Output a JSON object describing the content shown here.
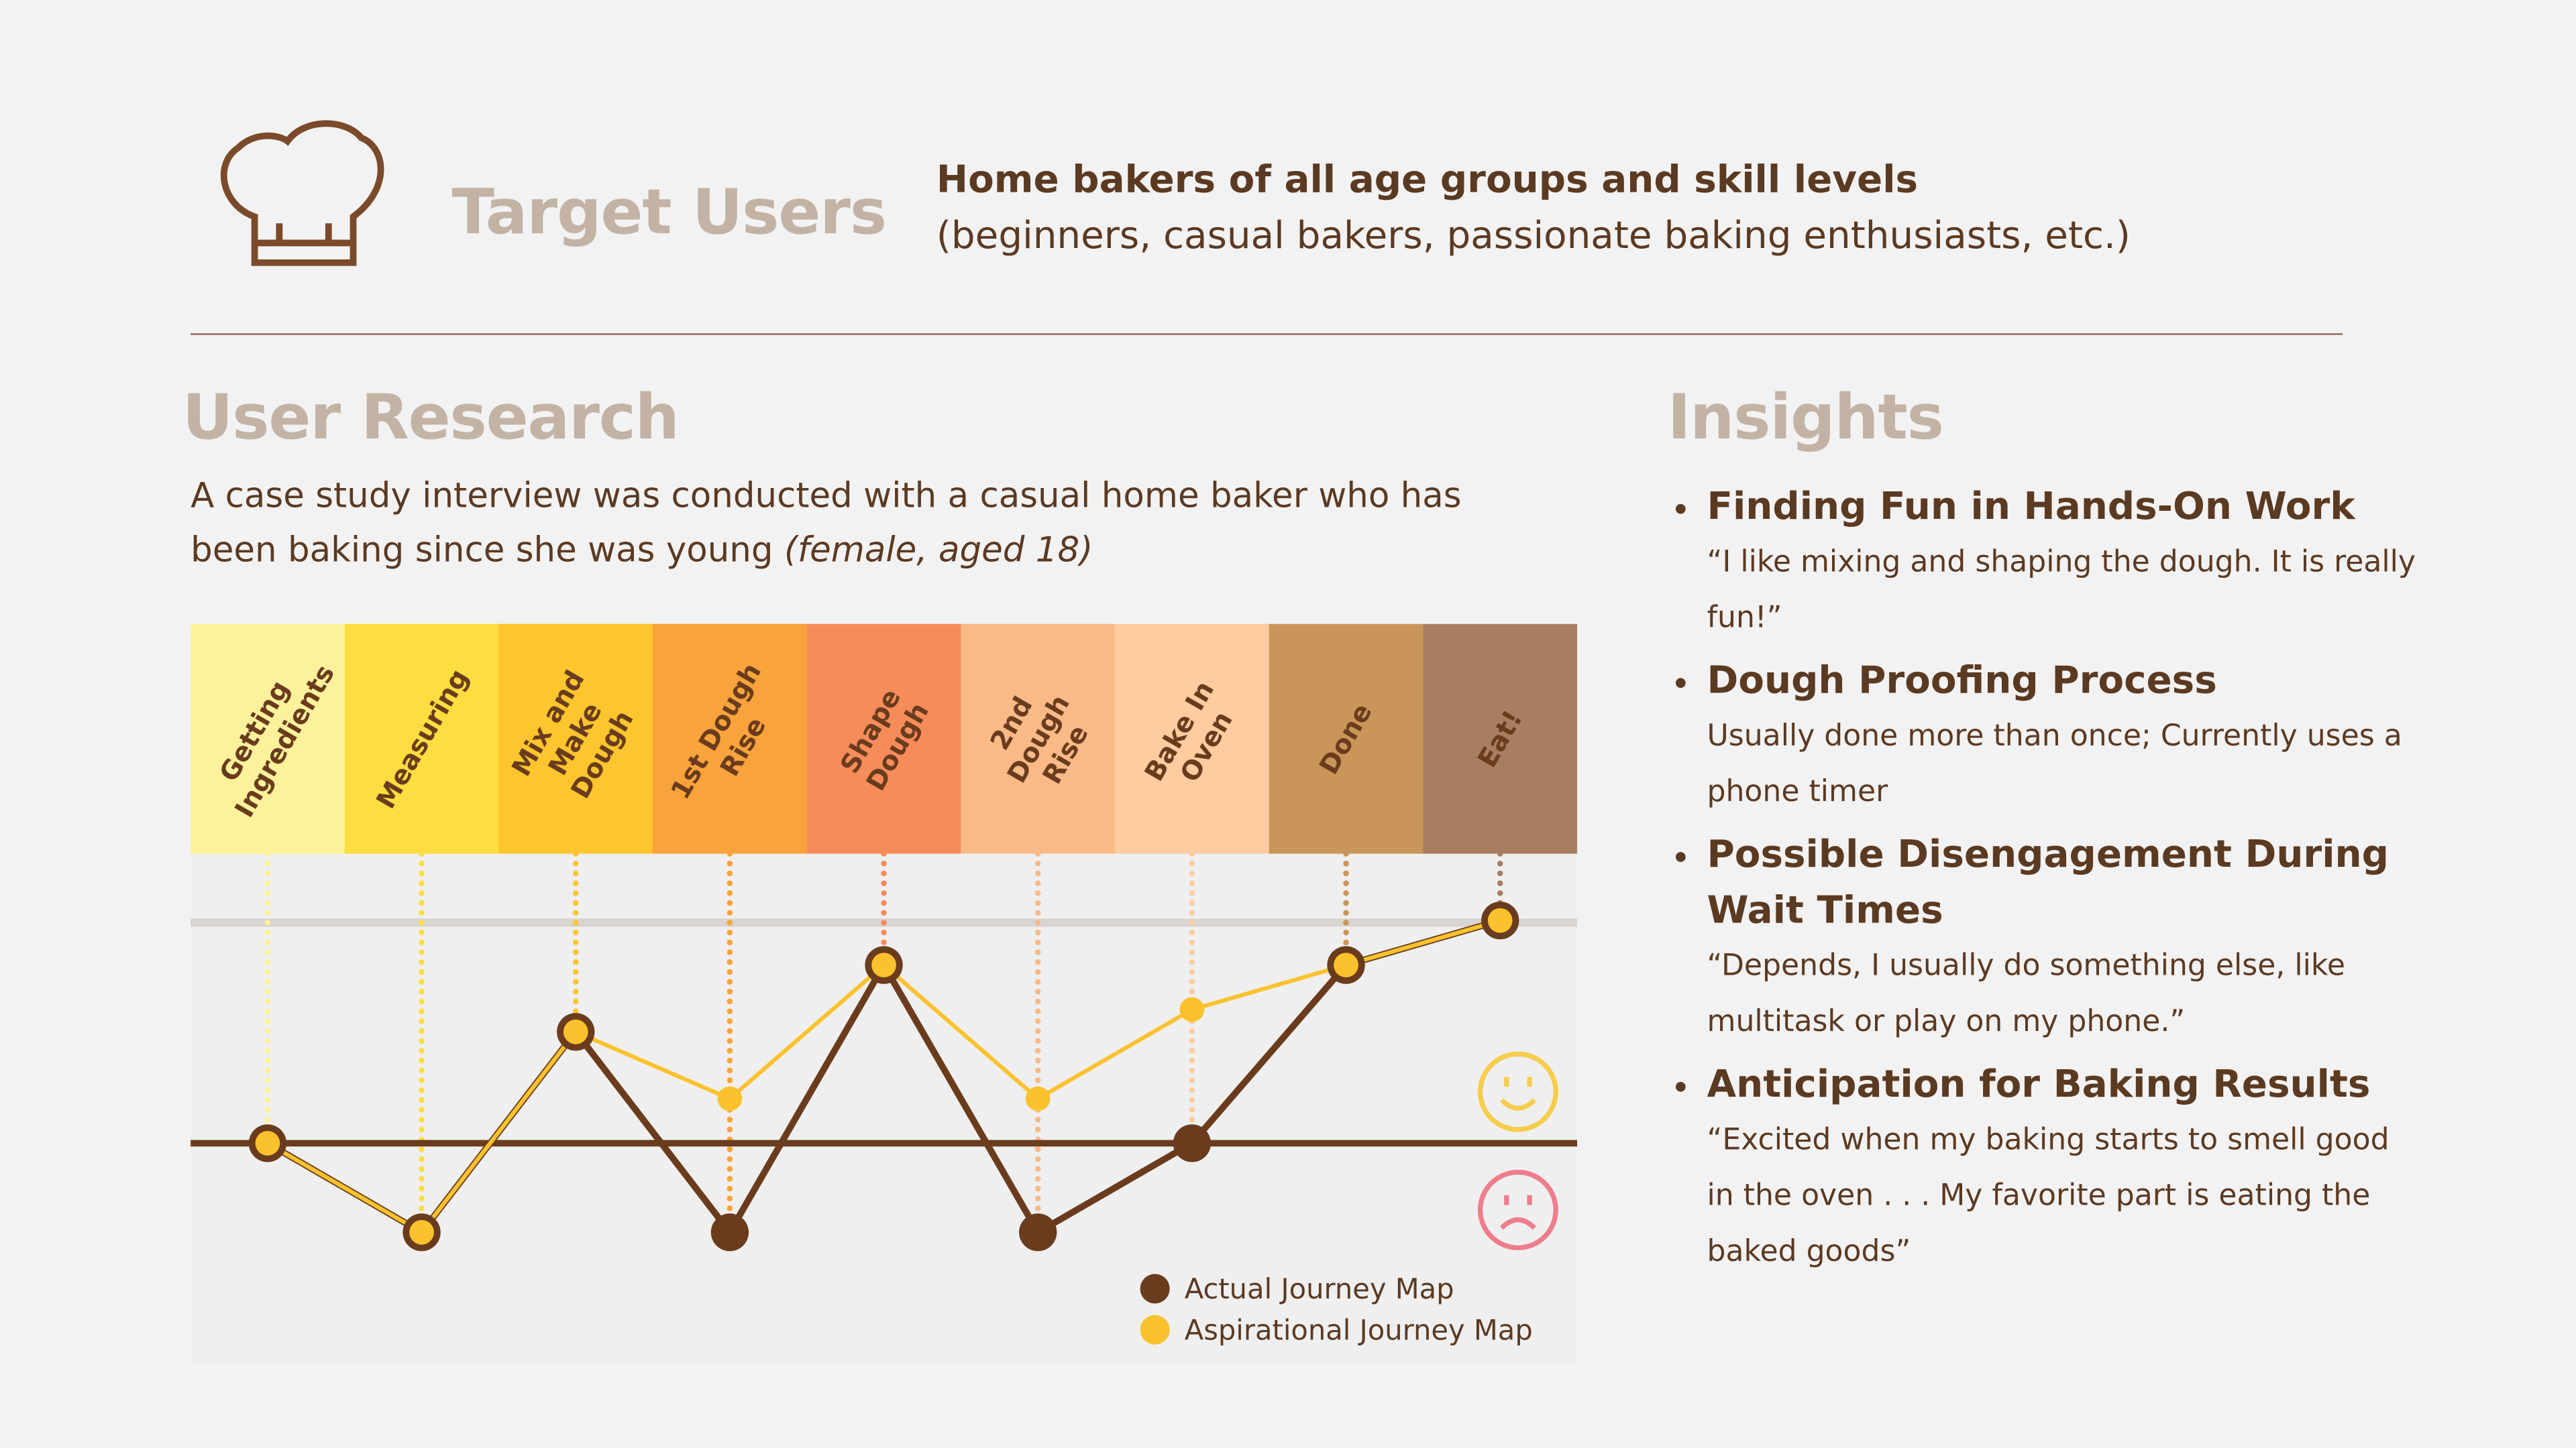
{
  "header": {
    "title": "Target Users",
    "headline": "Home bakers of all age groups and skill levels",
    "detail": "(beginners, casual bakers, passionate baking enthusiasts, etc.)"
  },
  "research": {
    "title": "User Research",
    "description": "A case study interview was conducted with a casual home baker who has been baking since she was young",
    "note": "(female, aged 18)"
  },
  "chart_data": {
    "type": "line",
    "categories": [
      "Getting Ingredients",
      "Measuring",
      "Mix and Make Dough",
      "1st Dough Rise",
      "Shape Dough",
      "2nd Dough Rise",
      "Bake In Oven",
      "Done",
      "Eat!"
    ],
    "category_colors": [
      "#fdf29b",
      "#fedd40",
      "#fec52e",
      "#f9a33c",
      "#f78c5b",
      "#f9ba87",
      "#fdcca0",
      "#c99659",
      "#a87e61"
    ],
    "ylim": [
      -1,
      1.3
    ],
    "series": [
      {
        "name": "Actual Journey Map",
        "color": "#6a3c1d",
        "values": [
          0,
          -0.4,
          0.5,
          -0.4,
          0.8,
          -0.4,
          0,
          0.8,
          1.0
        ]
      },
      {
        "name": "Aspirational Journey Map",
        "color": "#fbc22e",
        "values": [
          0,
          -0.4,
          0.5,
          0.2,
          0.8,
          0.2,
          0.6,
          0.8,
          1.0
        ]
      }
    ]
  },
  "insights": {
    "title": "Insights",
    "items": [
      {
        "heading": "Finding Fun in Hands-On Work",
        "text": "“I like mixing and shaping the dough. It is really fun!”"
      },
      {
        "heading": "Dough Proofing Process",
        "text": "Usually done more than once; Currently uses a phone timer"
      },
      {
        "heading": "Possible Disengagement During Wait Times",
        "text": "“Depends, I usually do something else, like multitask or play on my phone.”"
      },
      {
        "heading": "Anticipation for Baking Results",
        "text": "“Excited when my baking starts to smell good in the oven . . . My favorite part is eating the baked goods”"
      }
    ]
  }
}
